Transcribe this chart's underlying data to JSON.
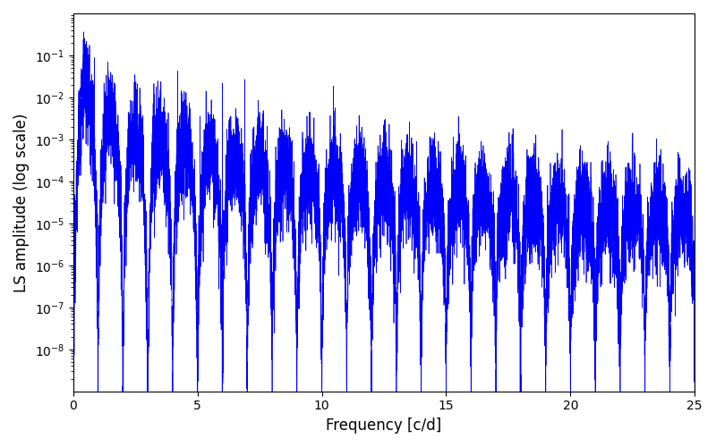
{
  "title": "",
  "xlabel": "Frequency [c/d]",
  "ylabel": "LS amplitude (log scale)",
  "xlim": [
    0,
    25
  ],
  "ylim": [
    1e-09,
    1.0
  ],
  "ytick_min": 1e-08,
  "line_color": "#0000ff",
  "line_width": 0.5,
  "yscale": "log",
  "figsize": [
    8.0,
    5.0
  ],
  "dpi": 100,
  "yticks": [
    1e-08,
    1e-07,
    1e-06,
    1e-05,
    0.0001,
    0.001,
    0.01,
    0.1
  ],
  "xticks": [
    0,
    5,
    10,
    15,
    20,
    25
  ],
  "bg_color": "#ffffff",
  "seed": 12345
}
